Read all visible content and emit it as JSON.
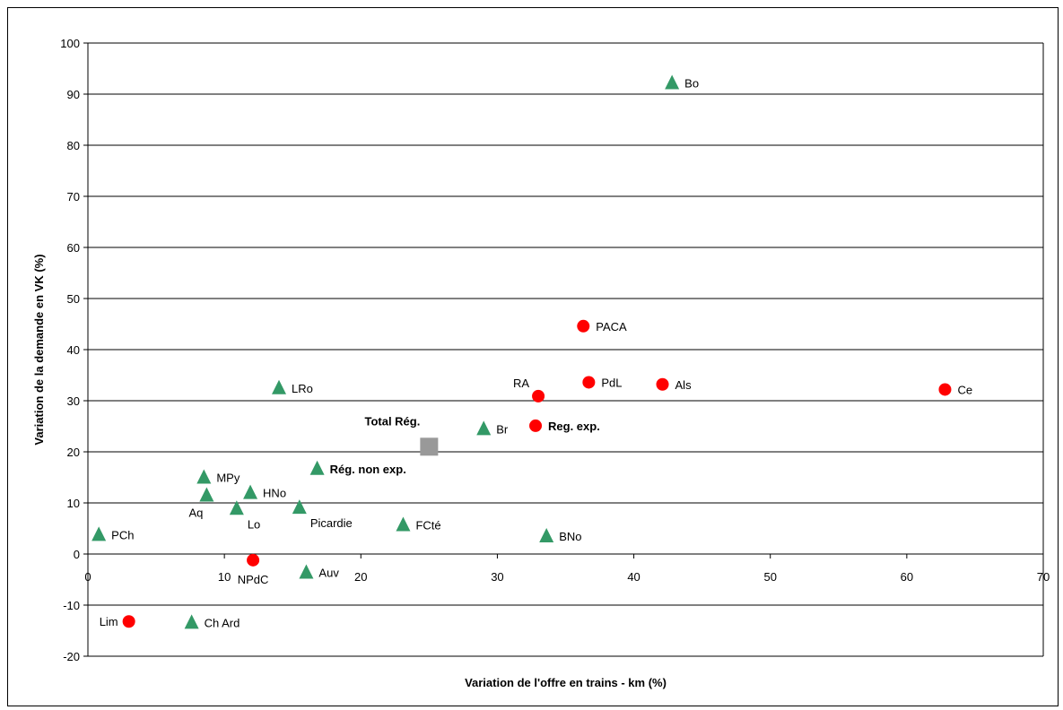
{
  "chart_data": {
    "type": "scatter",
    "title": "",
    "xlabel": "Variation de l'offre en trains - km (%)",
    "ylabel": "Variation de la demande en VK (%)",
    "xlim": [
      0,
      70
    ],
    "ylim": [
      -20,
      100
    ],
    "xticks": [
      0,
      10,
      20,
      30,
      40,
      50,
      60,
      70
    ],
    "yticks": [
      -20,
      -10,
      0,
      10,
      20,
      30,
      40,
      50,
      60,
      70,
      80,
      90,
      100
    ],
    "grid": "horizontal",
    "legend": "none",
    "colors": {
      "triangle": "#339966",
      "circle": "#ff0000",
      "square": "#999999"
    },
    "series": [
      {
        "marker": "triangle",
        "points": [
          {
            "label": "Bo",
            "x": 42.8,
            "y": 92.2,
            "anchor": "right",
            "bold": false
          },
          {
            "label": "LRo",
            "x": 14.0,
            "y": 32.5,
            "anchor": "right",
            "bold": false
          },
          {
            "label": "Br",
            "x": 29.0,
            "y": 24.5,
            "anchor": "right",
            "bold": false
          },
          {
            "label": "Rég. non exp.",
            "x": 16.8,
            "y": 16.7,
            "anchor": "right",
            "bold": true
          },
          {
            "label": "MPy",
            "x": 8.5,
            "y": 15.0,
            "anchor": "right",
            "bold": false
          },
          {
            "label": "HNo",
            "x": 11.9,
            "y": 12.0,
            "anchor": "right",
            "bold": false
          },
          {
            "label": "Aq",
            "x": 8.7,
            "y": 11.5,
            "anchor": "below-left",
            "bold": false
          },
          {
            "label": "Lo",
            "x": 10.9,
            "y": 8.9,
            "anchor": "below-right",
            "bold": false
          },
          {
            "label": "Picardie",
            "x": 15.5,
            "y": 9.1,
            "anchor": "below-right",
            "bold": false
          },
          {
            "label": "FCté",
            "x": 23.1,
            "y": 5.7,
            "anchor": "right",
            "bold": false
          },
          {
            "label": "PCh",
            "x": 0.8,
            "y": 3.8,
            "anchor": "right",
            "bold": false
          },
          {
            "label": "BNo",
            "x": 33.6,
            "y": 3.5,
            "anchor": "right",
            "bold": false
          },
          {
            "label": "Auv",
            "x": 16.0,
            "y": -3.6,
            "anchor": "right",
            "bold": false
          },
          {
            "label": "Ch Ard",
            "x": 7.6,
            "y": -13.4,
            "anchor": "right",
            "bold": false
          }
        ]
      },
      {
        "marker": "circle",
        "points": [
          {
            "label": "PACA",
            "x": 36.3,
            "y": 44.6,
            "anchor": "right",
            "bold": false
          },
          {
            "label": "PdL",
            "x": 36.7,
            "y": 33.6,
            "anchor": "right",
            "bold": false
          },
          {
            "label": "Als",
            "x": 42.1,
            "y": 33.2,
            "anchor": "right",
            "bold": false
          },
          {
            "label": "Ce",
            "x": 62.8,
            "y": 32.2,
            "anchor": "right",
            "bold": false
          },
          {
            "label": "RA",
            "x": 33.0,
            "y": 30.9,
            "anchor": "above-left",
            "bold": false
          },
          {
            "label": "Reg. exp.",
            "x": 32.8,
            "y": 25.1,
            "anchor": "right",
            "bold": true
          },
          {
            "label": "NPdC",
            "x": 12.1,
            "y": -1.2,
            "anchor": "below",
            "bold": false
          },
          {
            "label": "Lim",
            "x": 3.0,
            "y": -13.2,
            "anchor": "left",
            "bold": false
          }
        ]
      },
      {
        "marker": "square",
        "points": [
          {
            "label": "Total Rég.",
            "x": 25.0,
            "y": 21.0,
            "anchor": "above-left",
            "bold": true
          }
        ]
      }
    ]
  }
}
